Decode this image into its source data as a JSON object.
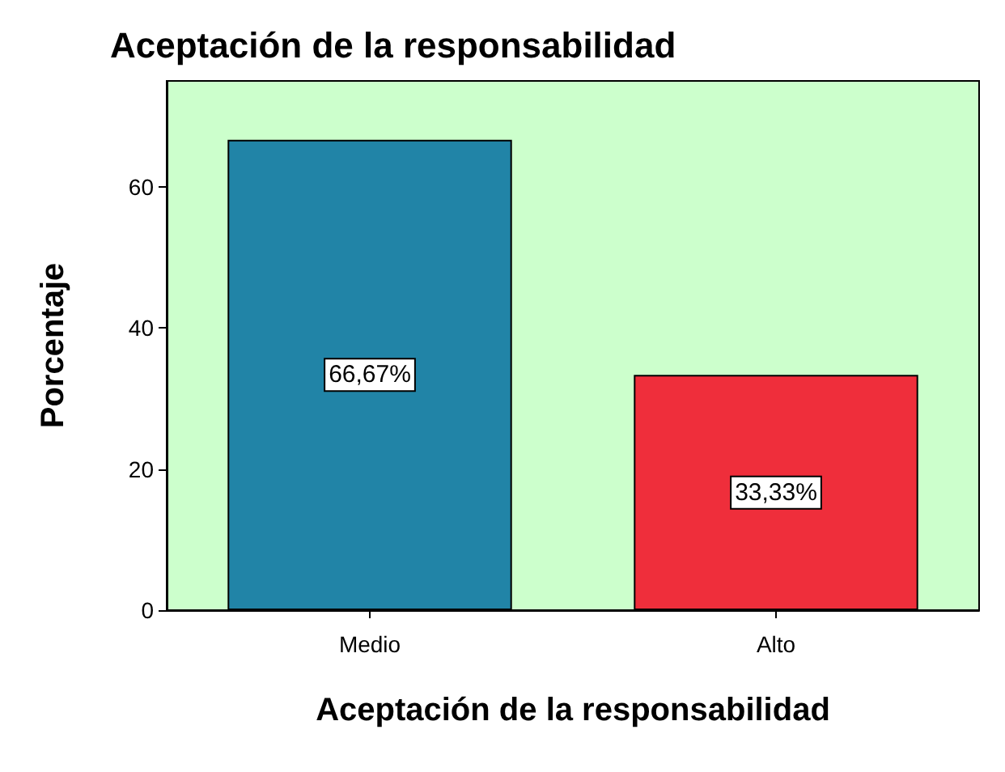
{
  "chart_data": {
    "type": "bar",
    "title": "Aceptación de la responsabilidad",
    "xlabel": "Aceptación de la responsabilidad",
    "ylabel": "Porcentaje",
    "categories": [
      "Medio",
      "Alto"
    ],
    "values": [
      66.67,
      33.33
    ],
    "colors": [
      "#2184a7",
      "#ef2e3b"
    ],
    "value_labels": [
      "66,67%",
      "33,33%"
    ],
    "ylim": [
      0,
      75
    ],
    "yticks": [
      0,
      20,
      40,
      60
    ],
    "grid": false
  }
}
